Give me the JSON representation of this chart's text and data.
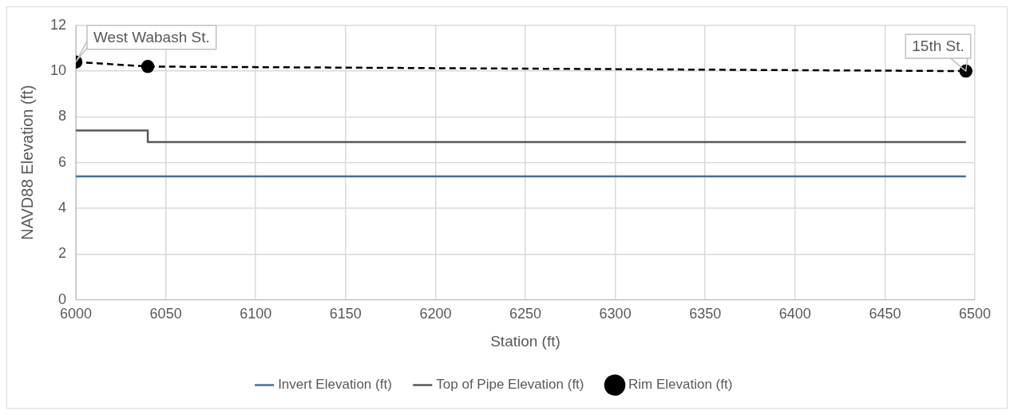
{
  "chart_data": {
    "type": "line",
    "xlabel": "Station (ft)",
    "ylabel": "NAVD88 Elevation (ft)",
    "xlim": [
      6000,
      6500
    ],
    "xticks": [
      6000,
      6050,
      6100,
      6150,
      6200,
      6250,
      6300,
      6350,
      6400,
      6450,
      6500
    ],
    "ylim": [
      0,
      12
    ],
    "yticks": [
      0,
      2,
      4,
      6,
      8,
      10,
      12
    ],
    "grid": true,
    "legend": "bottom",
    "series": [
      {
        "name": "Invert Elevation (ft)",
        "type": "line",
        "color": "#44709a",
        "x": [
          6000,
          6495
        ],
        "values": [
          5.4,
          5.4
        ],
        "marker": "none",
        "line_style": "solid"
      },
      {
        "name": "Top of Pipe Elevation (ft)",
        "type": "step",
        "color": "#595959",
        "x": [
          6000,
          6040,
          6495
        ],
        "values": [
          7.4,
          6.9,
          6.9
        ],
        "marker": "none",
        "line_style": "solid"
      },
      {
        "name": "Rim Elevation (ft)",
        "type": "line",
        "color": "#000000",
        "x": [
          6000,
          6040,
          6495
        ],
        "values": [
          10.4,
          10.2,
          10.0
        ],
        "marker": "circle",
        "line_style": "dashed"
      }
    ],
    "annotations": [
      {
        "text": "West Wabash St.",
        "x": 6000,
        "y": 10.4
      },
      {
        "text": "15th St.",
        "x": 6495,
        "y": 10.0
      }
    ]
  }
}
